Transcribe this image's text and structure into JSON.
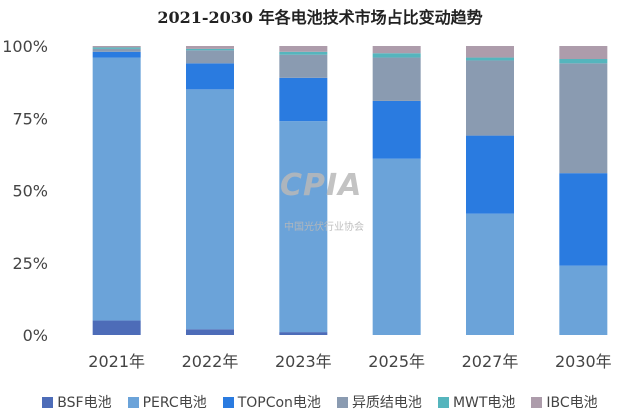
{
  "chart_data": {
    "type": "bar",
    "stacked": true,
    "title": "2021-2030 年各电池技术市场占比变动趋势",
    "categories": [
      "2021年",
      "2022年",
      "2023年",
      "2025年",
      "2027年",
      "2030年"
    ],
    "ylim": [
      0,
      100
    ],
    "yticks": [
      "0%",
      "25%",
      "50%",
      "75%",
      "100%"
    ],
    "grid": false,
    "legend_position": "bottom",
    "series": [
      {
        "name": "BSF电池",
        "color": "#4d6cb8",
        "values": [
          5,
          2,
          1,
          0,
          0,
          0
        ]
      },
      {
        "name": "PERC电池",
        "color": "#6ba3d9",
        "values": [
          91,
          83,
          73,
          61,
          42,
          24
        ]
      },
      {
        "name": "TOPCon电池",
        "color": "#2a7be0",
        "values": [
          2,
          9,
          15,
          20,
          27,
          32
        ]
      },
      {
        "name": "异质结电池",
        "color": "#8a9bb1",
        "values": [
          1,
          4.5,
          8,
          15,
          26,
          38
        ]
      },
      {
        "name": "MWT电池",
        "color": "#55b5bd",
        "values": [
          0.5,
          0.5,
          1,
          1.5,
          1,
          1.5
        ]
      },
      {
        "name": "IBC电池",
        "color": "#ad9cab",
        "values": [
          0.5,
          1,
          2,
          2.5,
          4,
          4.5
        ]
      }
    ]
  },
  "watermark": {
    "text": "CPIA",
    "subtitle": "中国光伏行业协会"
  }
}
